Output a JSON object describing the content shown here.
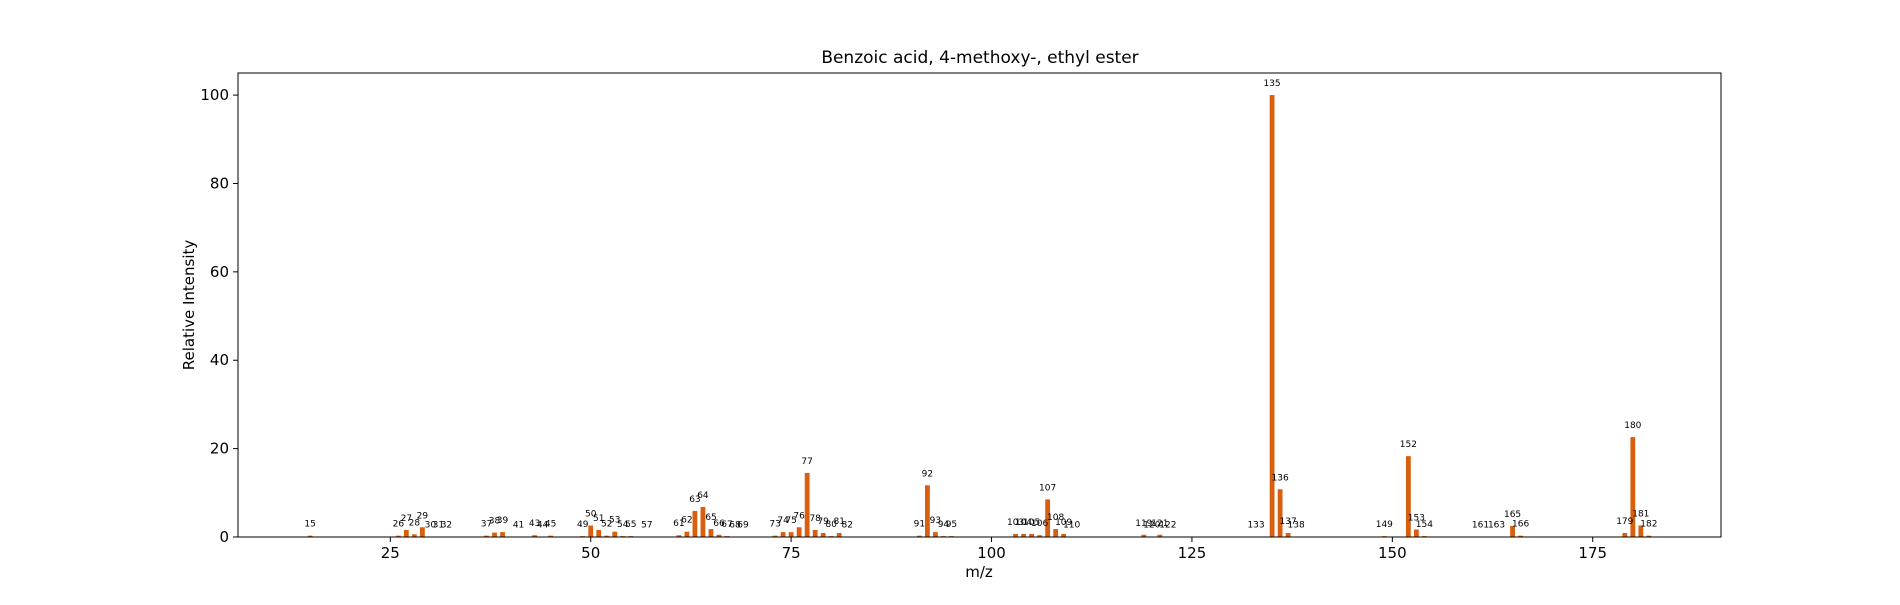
{
  "chart_data": {
    "type": "bar",
    "title": "Benzoic acid, 4-methoxy-, ethyl ester",
    "xlabel": "m/z",
    "ylabel": "Relative Intensity",
    "xlim": [
      6,
      191
    ],
    "ylim": [
      0,
      105
    ],
    "xticks": [
      25,
      50,
      75,
      100,
      125,
      150,
      175
    ],
    "yticks": [
      0,
      20,
      40,
      60,
      80,
      100
    ],
    "bar_color": "#d95f0e",
    "grid": false,
    "peaks": [
      {
        "mz": 15,
        "intensity": 0.3
      },
      {
        "mz": 26,
        "intensity": 0.3
      },
      {
        "mz": 27,
        "intensity": 1.6
      },
      {
        "mz": 28,
        "intensity": 0.6
      },
      {
        "mz": 29,
        "intensity": 2.2
      },
      {
        "mz": 30,
        "intensity": 0.1
      },
      {
        "mz": 31,
        "intensity": 0.1
      },
      {
        "mz": 32,
        "intensity": 0.1
      },
      {
        "mz": 37,
        "intensity": 0.3
      },
      {
        "mz": 38,
        "intensity": 1.0
      },
      {
        "mz": 39,
        "intensity": 1.1
      },
      {
        "mz": 41,
        "intensity": 0.1
      },
      {
        "mz": 43,
        "intensity": 0.4
      },
      {
        "mz": 44,
        "intensity": 0.1
      },
      {
        "mz": 45,
        "intensity": 0.3
      },
      {
        "mz": 49,
        "intensity": 0.2
      },
      {
        "mz": 50,
        "intensity": 2.6
      },
      {
        "mz": 51,
        "intensity": 1.6
      },
      {
        "mz": 52,
        "intensity": 0.3
      },
      {
        "mz": 53,
        "intensity": 1.2
      },
      {
        "mz": 54,
        "intensity": 0.2
      },
      {
        "mz": 55,
        "intensity": 0.2
      },
      {
        "mz": 57,
        "intensity": 0.1
      },
      {
        "mz": 61,
        "intensity": 0.4
      },
      {
        "mz": 62,
        "intensity": 1.2
      },
      {
        "mz": 63,
        "intensity": 5.9
      },
      {
        "mz": 64,
        "intensity": 6.8
      },
      {
        "mz": 65,
        "intensity": 1.8
      },
      {
        "mz": 66,
        "intensity": 0.5
      },
      {
        "mz": 67,
        "intensity": 0.2
      },
      {
        "mz": 68,
        "intensity": 0.1
      },
      {
        "mz": 69,
        "intensity": 0.1
      },
      {
        "mz": 73,
        "intensity": 0.3
      },
      {
        "mz": 74,
        "intensity": 1.1
      },
      {
        "mz": 75,
        "intensity": 1.1
      },
      {
        "mz": 76,
        "intensity": 2.2
      },
      {
        "mz": 77,
        "intensity": 14.5
      },
      {
        "mz": 78,
        "intensity": 1.6
      },
      {
        "mz": 79,
        "intensity": 0.9
      },
      {
        "mz": 80,
        "intensity": 0.2
      },
      {
        "mz": 81,
        "intensity": 0.9
      },
      {
        "mz": 82,
        "intensity": 0.1
      },
      {
        "mz": 91,
        "intensity": 0.3
      },
      {
        "mz": 92,
        "intensity": 11.7
      },
      {
        "mz": 93,
        "intensity": 1.1
      },
      {
        "mz": 94,
        "intensity": 0.2
      },
      {
        "mz": 95,
        "intensity": 0.2
      },
      {
        "mz": 103,
        "intensity": 0.7
      },
      {
        "mz": 104,
        "intensity": 0.7
      },
      {
        "mz": 105,
        "intensity": 0.7
      },
      {
        "mz": 106,
        "intensity": 0.4
      },
      {
        "mz": 107,
        "intensity": 8.5
      },
      {
        "mz": 108,
        "intensity": 1.8
      },
      {
        "mz": 109,
        "intensity": 0.7
      },
      {
        "mz": 110,
        "intensity": 0.1
      },
      {
        "mz": 119,
        "intensity": 0.5
      },
      {
        "mz": 120,
        "intensity": 0.1
      },
      {
        "mz": 121,
        "intensity": 0.5
      },
      {
        "mz": 122,
        "intensity": 0.1
      },
      {
        "mz": 133,
        "intensity": 0.1
      },
      {
        "mz": 135,
        "intensity": 100
      },
      {
        "mz": 136,
        "intensity": 10.8
      },
      {
        "mz": 137,
        "intensity": 0.9
      },
      {
        "mz": 138,
        "intensity": 0.1
      },
      {
        "mz": 149,
        "intensity": 0.2
      },
      {
        "mz": 152,
        "intensity": 18.3
      },
      {
        "mz": 153,
        "intensity": 1.7
      },
      {
        "mz": 154,
        "intensity": 0.2
      },
      {
        "mz": 161,
        "intensity": 0.1
      },
      {
        "mz": 163,
        "intensity": 0.1
      },
      {
        "mz": 165,
        "intensity": 2.5
      },
      {
        "mz": 166,
        "intensity": 0.3
      },
      {
        "mz": 179,
        "intensity": 0.9
      },
      {
        "mz": 180,
        "intensity": 22.6
      },
      {
        "mz": 181,
        "intensity": 2.6
      },
      {
        "mz": 182,
        "intensity": 0.3
      }
    ]
  }
}
